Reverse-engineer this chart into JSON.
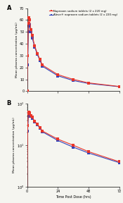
{
  "title_A": "A",
  "title_B": "B",
  "xlabel": "Time Post Dose (hrs)",
  "ylabel": "Mean plasma concentration (µg/mL)",
  "legend_1": "Naproxen sodium tablets (2 x 220 mg)",
  "legend_2": "Aleve® naproxen sodium tablets (2 x 220 mg)",
  "color_red": "#e8352a",
  "color_blue": "#3344bb",
  "time": [
    0,
    0.5,
    1,
    1.5,
    2,
    3,
    4,
    6,
    8,
    10,
    12,
    24,
    36,
    48,
    72
  ],
  "conc_red": [
    0.5,
    30,
    57,
    62,
    60,
    52,
    47,
    38,
    32,
    27,
    22,
    14,
    10,
    7,
    4
  ],
  "conc_blue": [
    0.5,
    22,
    50,
    55,
    56,
    50,
    45,
    37,
    31,
    26,
    21,
    13,
    9,
    6.5,
    3.8
  ],
  "conc_red_B": [
    0.5,
    30,
    57,
    62,
    60,
    52,
    47,
    38,
    32,
    27,
    22,
    14,
    10,
    7,
    4
  ],
  "conc_blue_B": [
    0.5,
    22,
    50,
    55,
    56,
    50,
    45,
    37,
    31,
    26,
    21,
    13,
    9,
    6.5,
    3.8
  ],
  "xlim": [
    0,
    72
  ],
  "ylim_A": [
    0,
    70
  ],
  "ylim_B_log": [
    1,
    100
  ],
  "xticks": [
    0,
    24,
    48,
    72
  ],
  "yticks_A": [
    0,
    10,
    20,
    30,
    40,
    50,
    60,
    70
  ],
  "marker": "s",
  "markersize": 2.5,
  "linewidth": 0.8,
  "bg_color": "#f5f5f0"
}
